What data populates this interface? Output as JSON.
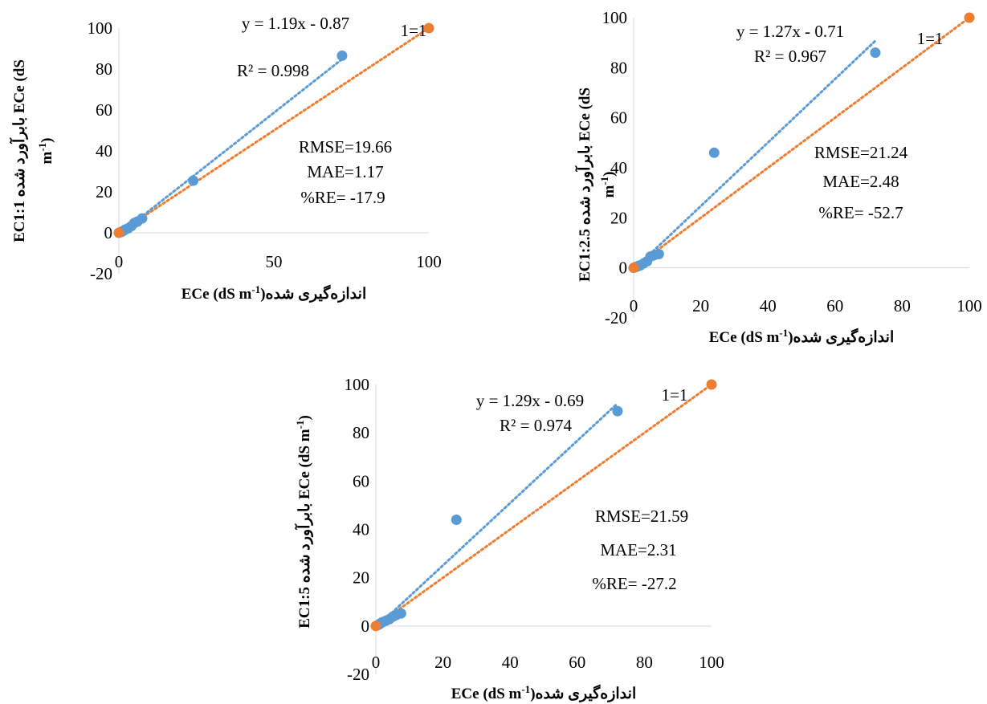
{
  "colors": {
    "series_points": "#5b9bd5",
    "one_to_one_points": "#ed7d31",
    "label_1to1": "#e00000",
    "axis": "#d9d9d9"
  },
  "chart_data": [
    {
      "type": "scatter",
      "xlabel_parts": [
        "ECe (dS m",
        "-1",
        ")",
        "اندازه‌گیری شده"
      ],
      "ylabel_lines": [
        [
          "EC1:1 با",
          "برآورد شده",
          " ECe (dS"
        ],
        [
          "m",
          "-1",
          ")"
        ]
      ],
      "xlim": [
        0,
        100
      ],
      "ylim": [
        -20,
        100
      ],
      "xticks": [
        "0",
        "50",
        "100"
      ],
      "yticks": [
        "-20",
        "0",
        "20",
        "40",
        "60",
        "80",
        "100"
      ],
      "series": [
        {
          "points": [
            [
              0.5,
              0.3
            ],
            [
              1,
              0.6
            ],
            [
              1.5,
              1
            ],
            [
              2,
              1.5
            ],
            [
              3,
              2.2
            ],
            [
              4,
              3.2
            ],
            [
              5,
              4.8
            ],
            [
              6,
              5.5
            ],
            [
              7.5,
              7
            ],
            [
              24,
              25.5
            ],
            [
              72,
              86.5
            ]
          ]
        },
        {
          "points": [
            [
              0,
              0
            ],
            [
              100,
              100
            ]
          ]
        }
      ],
      "trendline": {
        "slope": 1.19,
        "intercept": -0.87
      },
      "equation": "y = 1.19x - 0.87",
      "r2": "R² = 0.998",
      "label_1to1": "1=1",
      "stats": [
        "RMSE=19.66",
        "MAE=1.17",
        "%RE= -17.9"
      ]
    },
    {
      "type": "scatter",
      "xlabel_parts": [
        "ECe (dS m",
        "-1",
        ")",
        "اندازه‌گیری شده"
      ],
      "ylabel_lines": [
        [
          "EC1:2.5 با",
          "برآورد شده",
          " ECe (dS"
        ],
        [
          "m",
          "-1",
          ")"
        ]
      ],
      "xlim": [
        0,
        100
      ],
      "ylim": [
        -20,
        100
      ],
      "xticks": [
        "0",
        "20",
        "40",
        "60",
        "80",
        "100"
      ],
      "yticks": [
        "-20",
        "0",
        "20",
        "40",
        "60",
        "80",
        "100"
      ],
      "series": [
        {
          "points": [
            [
              0.5,
              0.3
            ],
            [
              1,
              0.5
            ],
            [
              1.5,
              0.8
            ],
            [
              2,
              1
            ],
            [
              3,
              1.8
            ],
            [
              4,
              2.6
            ],
            [
              5,
              4.5
            ],
            [
              6,
              5
            ],
            [
              7.5,
              5.5
            ],
            [
              24,
              46
            ],
            [
              72,
              86
            ]
          ]
        },
        {
          "points": [
            [
              0,
              0
            ],
            [
              100,
              100
            ]
          ]
        }
      ],
      "trendline": {
        "slope": 1.27,
        "intercept": -0.71
      },
      "equation": "y = 1.27x - 0.71",
      "r2": "R² = 0.967",
      "label_1to1": "1=1",
      "stats": [
        "RMSE=21.24",
        "MAE=2.48",
        "%RE= -52.7"
      ]
    },
    {
      "type": "scatter",
      "xlabel_parts": [
        "ECe (dS m",
        "-1",
        ")",
        "اندازه‌گیری شده"
      ],
      "ylabel_lines": [
        [
          "EC1:5 با",
          "برآورد شده",
          " ECe (dS m",
          "-1",
          ")"
        ]
      ],
      "xlim": [
        0,
        100
      ],
      "ylim": [
        -20,
        100
      ],
      "xticks": [
        "0",
        "20",
        "40",
        "60",
        "80",
        "100"
      ],
      "yticks": [
        "-20",
        "0",
        "20",
        "40",
        "60",
        "80",
        "100"
      ],
      "series": [
        {
          "points": [
            [
              0.5,
              0.3
            ],
            [
              1,
              0.7
            ],
            [
              1.5,
              1.2
            ],
            [
              2,
              1.6
            ],
            [
              3,
              2.2
            ],
            [
              4,
              2.8
            ],
            [
              5,
              3.8
            ],
            [
              6,
              4.5
            ],
            [
              7.5,
              5.2
            ],
            [
              24,
              44
            ],
            [
              72,
              89
            ]
          ]
        },
        {
          "points": [
            [
              0,
              0
            ],
            [
              100,
              100
            ]
          ]
        }
      ],
      "trendline": {
        "slope": 1.29,
        "intercept": -0.69
      },
      "equation": "y = 1.29x - 0.69",
      "r2": "R² = 0.974",
      "label_1to1": "1=1",
      "stats": [
        "RMSE=21.59",
        "MAE=2.31",
        "%RE= -27.2"
      ]
    }
  ]
}
